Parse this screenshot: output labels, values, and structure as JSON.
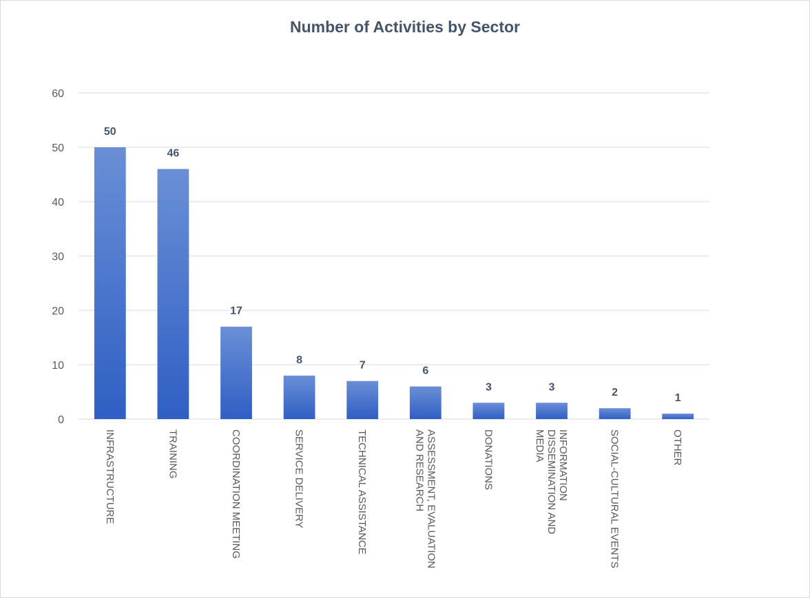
{
  "chart_data": {
    "type": "bar",
    "title": "Number of Activities by Sector",
    "xlabel": "",
    "ylabel": "",
    "categories": [
      [
        "INFRASTRUCTURE"
      ],
      [
        "TRAINING"
      ],
      [
        "COORDINATION MEETING"
      ],
      [
        "SERVICE DELIVERY"
      ],
      [
        "TECHNICAL ASSISTANCE"
      ],
      [
        "ASSESSMENT, EVALUATION",
        "AND RESEARCH"
      ],
      [
        "DONATIONS"
      ],
      [
        "INFORMATION",
        "DISSEMINATION AND",
        "MEDIA"
      ],
      [
        "SOCIAL-CULTURAL EVENTS"
      ],
      [
        "OTHER"
      ]
    ],
    "values": [
      50,
      46,
      17,
      8,
      7,
      6,
      3,
      3,
      2,
      1
    ],
    "ylim": [
      0,
      60
    ],
    "yticks": [
      0,
      10,
      20,
      30,
      40,
      50,
      60
    ],
    "grid": true,
    "legend": "none",
    "colors": {
      "bar_top": "#6a8fd6",
      "bar_bottom": "#2f5fc4",
      "grid": "#d9d9d9",
      "title": "#44546a"
    }
  }
}
